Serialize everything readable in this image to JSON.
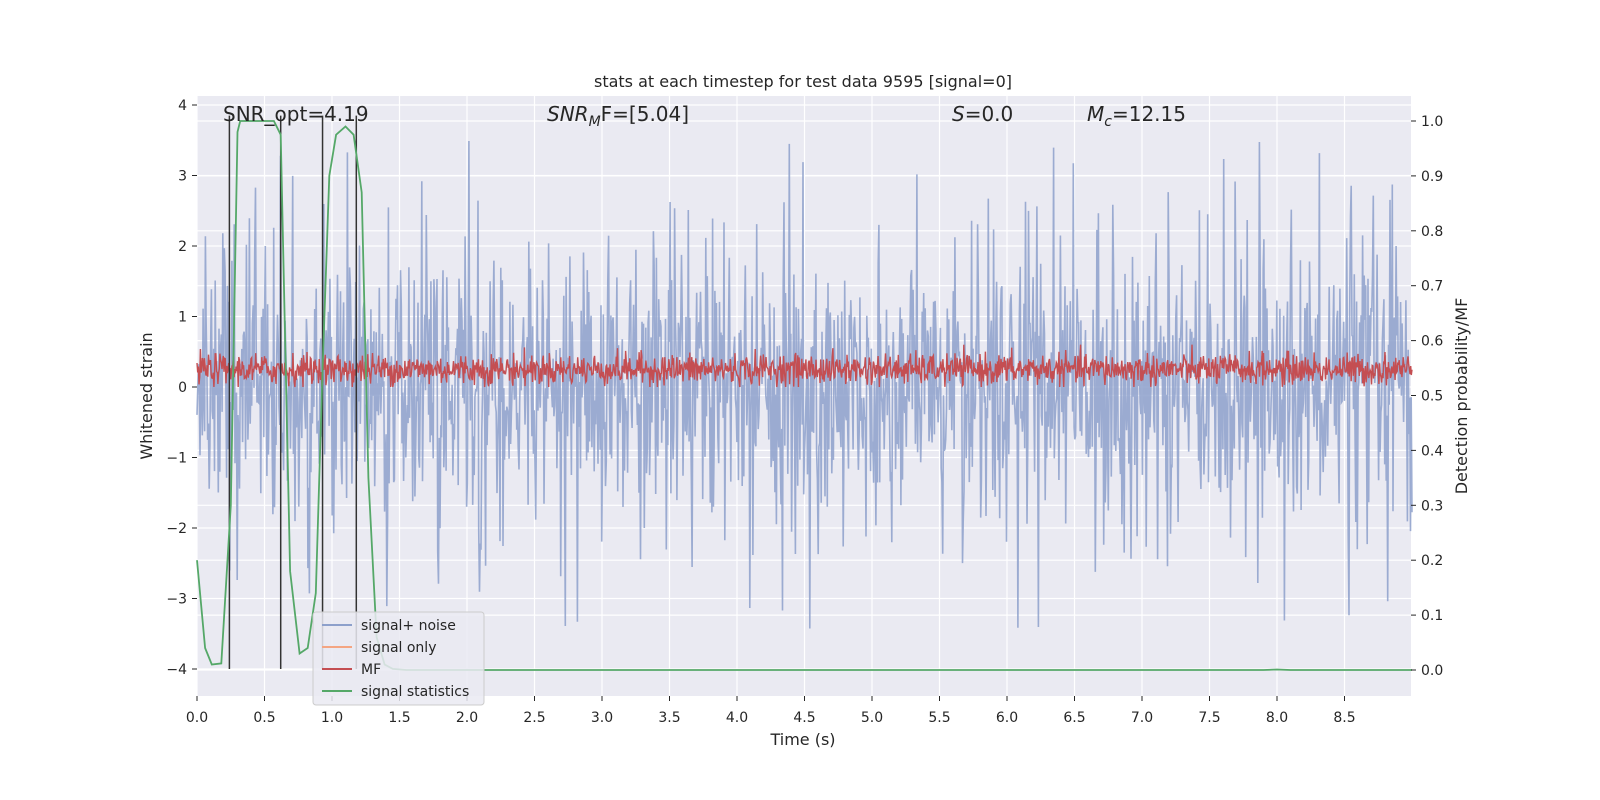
{
  "chart_data": {
    "type": "line",
    "title": "stats at each timestep for test data 9595 [signal=0]",
    "xlabel": "Time (s)",
    "ylabel_left": "Whitened strain",
    "ylabel_right": "Detection probability/MF",
    "xlim": [
      0.0,
      9.0
    ],
    "ylim_left": [
      -4.4,
      4.15
    ],
    "ylim_right": [
      -0.05,
      1.03
    ],
    "grid": true,
    "x_ticks": [
      0.0,
      0.5,
      1.0,
      1.5,
      2.0,
      2.5,
      3.0,
      3.5,
      4.0,
      4.5,
      5.0,
      5.5,
      6.0,
      6.5,
      7.0,
      7.5,
      8.0,
      8.5
    ],
    "x_tick_labels": [
      "0.0",
      "0.5",
      "1.0",
      "1.5",
      "2.0",
      "2.5",
      "3.0",
      "3.5",
      "4.0",
      "4.5",
      "5.0",
      "5.5",
      "6.0",
      "6.5",
      "7.0",
      "7.5",
      "8.0",
      "8.5"
    ],
    "y_left_ticks": [
      -4,
      -3,
      -2,
      -1,
      0,
      1,
      2,
      3,
      4
    ],
    "y_left_tick_labels": [
      "−4",
      "−3",
      "−2",
      "−1",
      "0",
      "1",
      "2",
      "3",
      "4"
    ],
    "y_right_ticks": [
      0.0,
      0.1,
      0.2,
      0.3,
      0.4,
      0.5,
      0.6,
      0.7,
      0.8,
      0.9,
      1.0
    ],
    "y_right_tick_labels": [
      "0.0",
      "0.1",
      "0.2",
      "0.3",
      "0.4",
      "0.5",
      "0.6",
      "0.7",
      "0.8",
      "0.9",
      "1.0"
    ],
    "annotations": {
      "snr_opt": "SNR_opt=4.19",
      "snr_mf_base": "SNR",
      "snr_mf_sub": "M",
      "snr_mf_tail": "F=[5.04]",
      "s_base": "S",
      "s_tail": "=0.0",
      "mc_base": "M",
      "mc_sub": "c",
      "mc_tail": "=12.15"
    },
    "legend": {
      "placement": "lower-left",
      "entries": [
        "signal+ noise",
        "signal only",
        "MF",
        "signal statistics"
      ]
    },
    "colors": {
      "signal_noise": "#8da0cb",
      "signal_only": "#f4a582",
      "mf": "#c44e52",
      "stats": "#55a868",
      "vlines": "#333333",
      "plot_bg": "#eaeaf2",
      "grid": "#ffffff"
    },
    "series": [
      {
        "name": "signal+ noise",
        "description_stats": {
          "center": 0.0,
          "typical_abs": 1.7,
          "peak_max": 3.75,
          "peak_min": -3.7
        }
      },
      {
        "name": "MF",
        "description_stats": {
          "center": 0.25,
          "range": [
            0.0,
            0.6
          ]
        }
      },
      {
        "name": "signal statistics",
        "axis": "right",
        "x": [
          0.0,
          0.06,
          0.11,
          0.18,
          0.25,
          0.3,
          0.32,
          0.42,
          0.52,
          0.57,
          0.62,
          0.69,
          0.76,
          0.82,
          0.88,
          0.93,
          0.98,
          1.03,
          1.1,
          1.16,
          1.22,
          1.27,
          1.33,
          1.39,
          1.45,
          1.55,
          2.0,
          3.0,
          4.0,
          5.0,
          6.0,
          7.0,
          7.9,
          8.0,
          8.1,
          9.0
        ],
        "y": [
          0.2,
          0.04,
          0.01,
          0.012,
          0.3,
          0.98,
          1.0,
          1.0,
          1.0,
          1.0,
          0.975,
          0.18,
          0.03,
          0.04,
          0.14,
          0.55,
          0.9,
          0.975,
          0.99,
          0.975,
          0.87,
          0.35,
          0.06,
          0.01,
          0.002,
          0.0,
          0.0,
          0.0,
          0.0,
          0.0,
          0.0,
          0.0,
          0.0,
          0.001,
          0.0,
          0.0
        ]
      }
    ],
    "vertical_lines_x": [
      0.24,
      0.62,
      0.93,
      1.18
    ]
  }
}
